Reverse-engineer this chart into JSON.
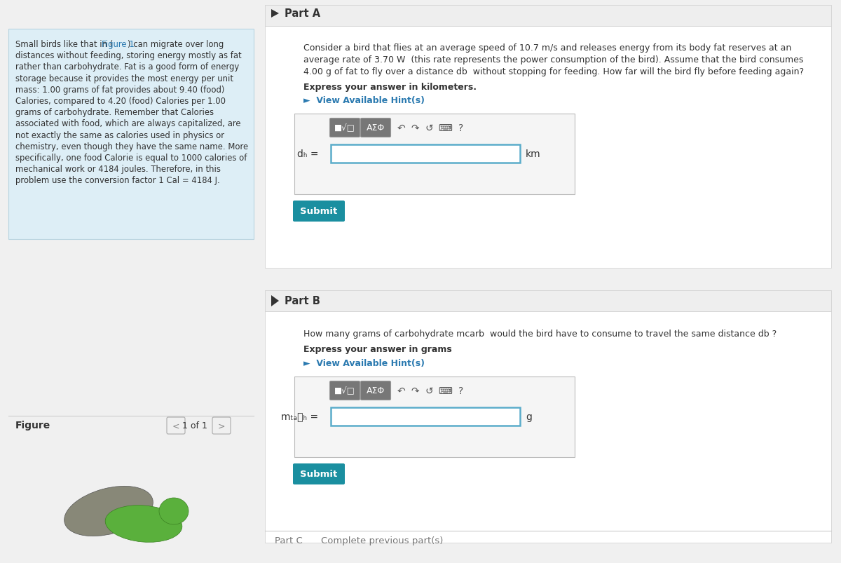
{
  "bg_color": "#f0f0f0",
  "left_panel_bg": "#ddeef6",
  "right_panel_bg": "#ffffff",
  "figure_label": "Figure",
  "figure_nav": "1 of 1",
  "part_a_header": "Part A",
  "part_a_bold": "Express your answer in kilometers.",
  "part_a_hint": "►  View Available Hint(s)",
  "part_a_unit": "km",
  "part_a_button": "Submit",
  "part_b_header": "Part B",
  "part_b_bold": "Express your answer in grams",
  "part_b_hint": "►  View Available Hint(s)",
  "part_b_unit": "g",
  "part_b_button": "Submit",
  "part_c_header": "Part C",
  "part_c_body": "Complete previous part(s)",
  "button_color": "#1a8fa0",
  "hint_color": "#2b7ab0",
  "input_border": "#5aacca",
  "divider_color": "#cccccc",
  "text_color": "#333333",
  "light_text": "#777777",
  "toolbar_btn_color": "#777777",
  "sidebar_lines": [
    [
      "Small birds like that in (",
      "Figure 1",
      ") can migrate over long"
    ],
    [
      "distances without feeding, storing energy mostly as fat",
      "",
      ""
    ],
    [
      "rather than carbohydrate. Fat is a good form of energy",
      "",
      ""
    ],
    [
      "storage because it provides the most energy per unit",
      "",
      ""
    ],
    [
      "mass: 1.00 grams of fat provides about 9.40 (food)",
      "",
      ""
    ],
    [
      "Calories, compared to 4.20 (food) Calories per 1.00",
      "",
      ""
    ],
    [
      "grams of carbohydrate. Remember that Calories",
      "",
      ""
    ],
    [
      "associated with food, which are always capitalized, are",
      "",
      ""
    ],
    [
      "not exactly the same as calories used in physics or",
      "",
      ""
    ],
    [
      "chemistry, even though they have the same name. More",
      "",
      ""
    ],
    [
      "specifically, one food Calorie is equal to 1000 calories of",
      "",
      ""
    ],
    [
      "mechanical work or 4184 joules. Therefore, in this",
      "",
      ""
    ],
    [
      "problem use the conversion factor 1 Cal = 4184 J.",
      "",
      ""
    ]
  ],
  "part_a_body_lines": [
    "Consider a bird that flies at an average speed of 10.7 m/s and releases energy from its body fat reserves at an",
    "average rate of 3.70 W  (this rate represents the power consumption of the bird). Assume that the bird consumes",
    "4.00 g of fat to fly over a distance db  without stopping for feeding. How far will the bird fly before feeding again?"
  ],
  "part_b_body": "How many grams of carbohydrate mcarb  would the bird have to consume to travel the same distance db ?"
}
